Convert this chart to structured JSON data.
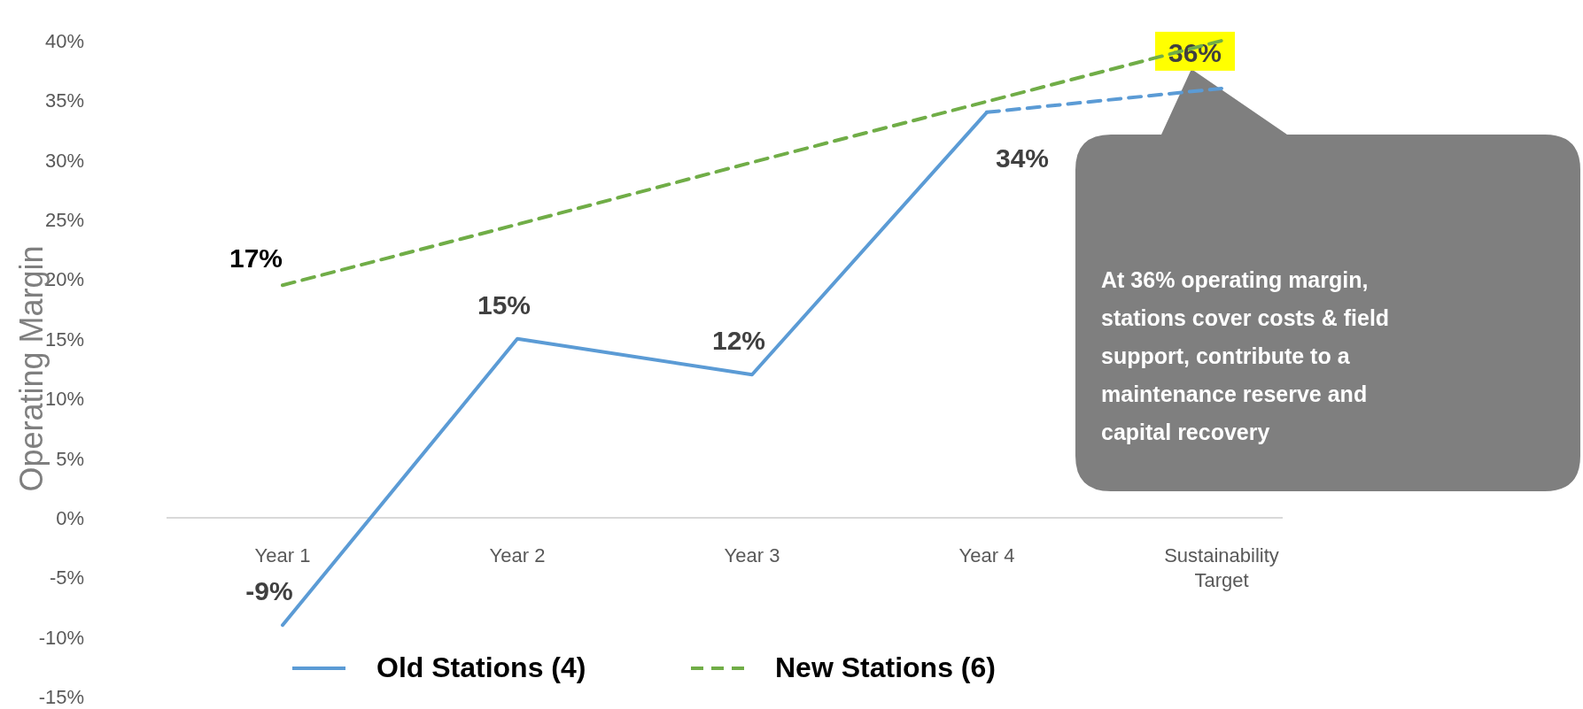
{
  "chart_data": {
    "type": "line",
    "ylabel": "Operating Margin",
    "categories": [
      "Year 1",
      "Year 2",
      "Year 3",
      "Year 4",
      "Sustainability Target"
    ],
    "series": [
      {
        "name": "Old Stations (4)",
        "color": "#5b9bd5",
        "values": [
          -9,
          15,
          12,
          34,
          null
        ],
        "line_style": "solid",
        "value_labels": [
          "-9%",
          "15%",
          "12%",
          "34%",
          null
        ]
      },
      {
        "color": "#5b9bd5",
        "values": [
          null,
          null,
          null,
          34,
          36
        ],
        "line_style": "dashed",
        "value_labels": [
          null,
          null,
          null,
          null,
          "36%"
        ]
      },
      {
        "name": "New Stations (6)",
        "color": "#70ad47",
        "values": [
          19.5,
          24.6,
          29.8,
          34.9,
          40
        ],
        "line_style": "dashed"
      }
    ],
    "ylim": [
      -15,
      40
    ],
    "yticks": [
      {
        "value": -15,
        "label": "-15%"
      },
      {
        "value": -10,
        "label": "-10%"
      },
      {
        "value": -5,
        "label": "-5%"
      },
      {
        "value": 0,
        "label": "0%"
      },
      {
        "value": 5,
        "label": "5%"
      },
      {
        "value": 10,
        "label": "10%"
      },
      {
        "value": 15,
        "label": "15%"
      },
      {
        "value": 20,
        "label": "20%"
      },
      {
        "value": 25,
        "label": "25%"
      },
      {
        "value": 30,
        "label": "30%"
      },
      {
        "value": 35,
        "label": "35%"
      },
      {
        "value": 40,
        "label": "40%"
      }
    ],
    "legend": "bottom",
    "marker": "none",
    "annotations": [
      "17%",
      "At 36% operating margin, stations cover costs & field support, contribute to a maintenance reserve and capital recovery"
    ]
  }
}
